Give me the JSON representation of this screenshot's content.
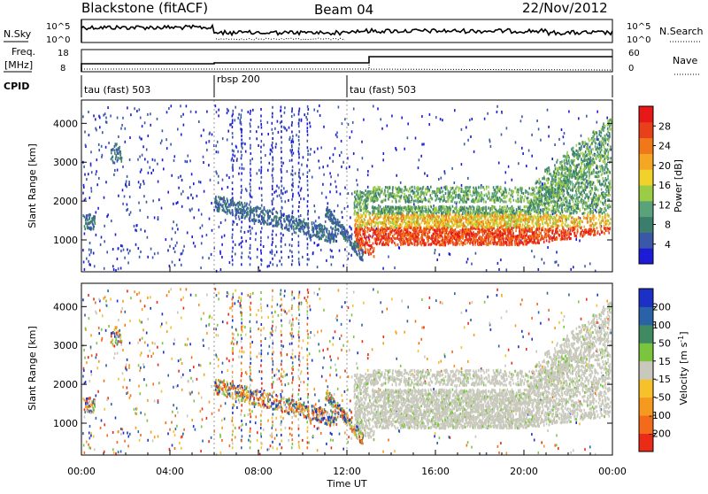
{
  "header": {
    "station": "Blackstone (fitACF)",
    "beam": "Beam 04",
    "date": "22/Nov/2012"
  },
  "noise_panel": {
    "left_label": "N.Sky",
    "right_label": "N.Search",
    "left_ticks": [
      "10^5",
      "10^0"
    ],
    "right_ticks": [
      "10^5",
      "10^0"
    ]
  },
  "freq_panel": {
    "left_label_1": "Freq.",
    "left_label_2": "[MHz]",
    "right_label": "Nave",
    "left_ticks": [
      "18",
      "8"
    ],
    "right_ticks": [
      "60",
      "0"
    ]
  },
  "cpid_panel": {
    "label": "CPID",
    "segments": [
      {
        "label": "tau (fast) 503",
        "start_hour": 0,
        "end_hour": 6
      },
      {
        "label": "rbsp 200",
        "start_hour": 6,
        "end_hour": 12
      },
      {
        "label": "tau (fast) 503",
        "start_hour": 12,
        "end_hour": 24
      }
    ]
  },
  "chart_data": [
    {
      "type": "heatmap",
      "name": "power",
      "ylabel": "Slant Range [km]",
      "yticks": [
        1000,
        2000,
        3000,
        4000
      ],
      "ylim": [
        180,
        4600
      ],
      "colorbar_label": "Power [dB]",
      "colorbar_ticks": [
        "4",
        "8",
        "12",
        "16",
        "20",
        "24",
        "28"
      ],
      "colorbar_colors": [
        "#1c1cd8",
        "#3a58a8",
        "#3c7e6c",
        "#5aa37a",
        "#9bcc45",
        "#f0d22a",
        "#f5a623",
        "#f07818",
        "#e8401a",
        "#e81818"
      ]
    },
    {
      "type": "heatmap",
      "name": "velocity",
      "ylabel": "Slant Range [km]",
      "yticks": [
        1000,
        2000,
        3000,
        4000
      ],
      "ylim": [
        180,
        4600
      ],
      "colorbar_label": "Velocity [m s^-1]",
      "colorbar_ticks": [
        "200",
        "100",
        "50",
        "15",
        "-15",
        "-50",
        "-100",
        "-200"
      ],
      "colorbar_colors": [
        "#1c30c8",
        "#2a62a8",
        "#3f8a60",
        "#7ac53d",
        "#c8c8bc",
        "#f7c12b",
        "#f59a1e",
        "#f26a1a",
        "#ec2a18"
      ]
    }
  ],
  "time_axis": {
    "label": "Time UT",
    "ticks": [
      "00:00",
      "04:00",
      "08:00",
      "12:00",
      "16:00",
      "20:00",
      "00:00"
    ]
  }
}
